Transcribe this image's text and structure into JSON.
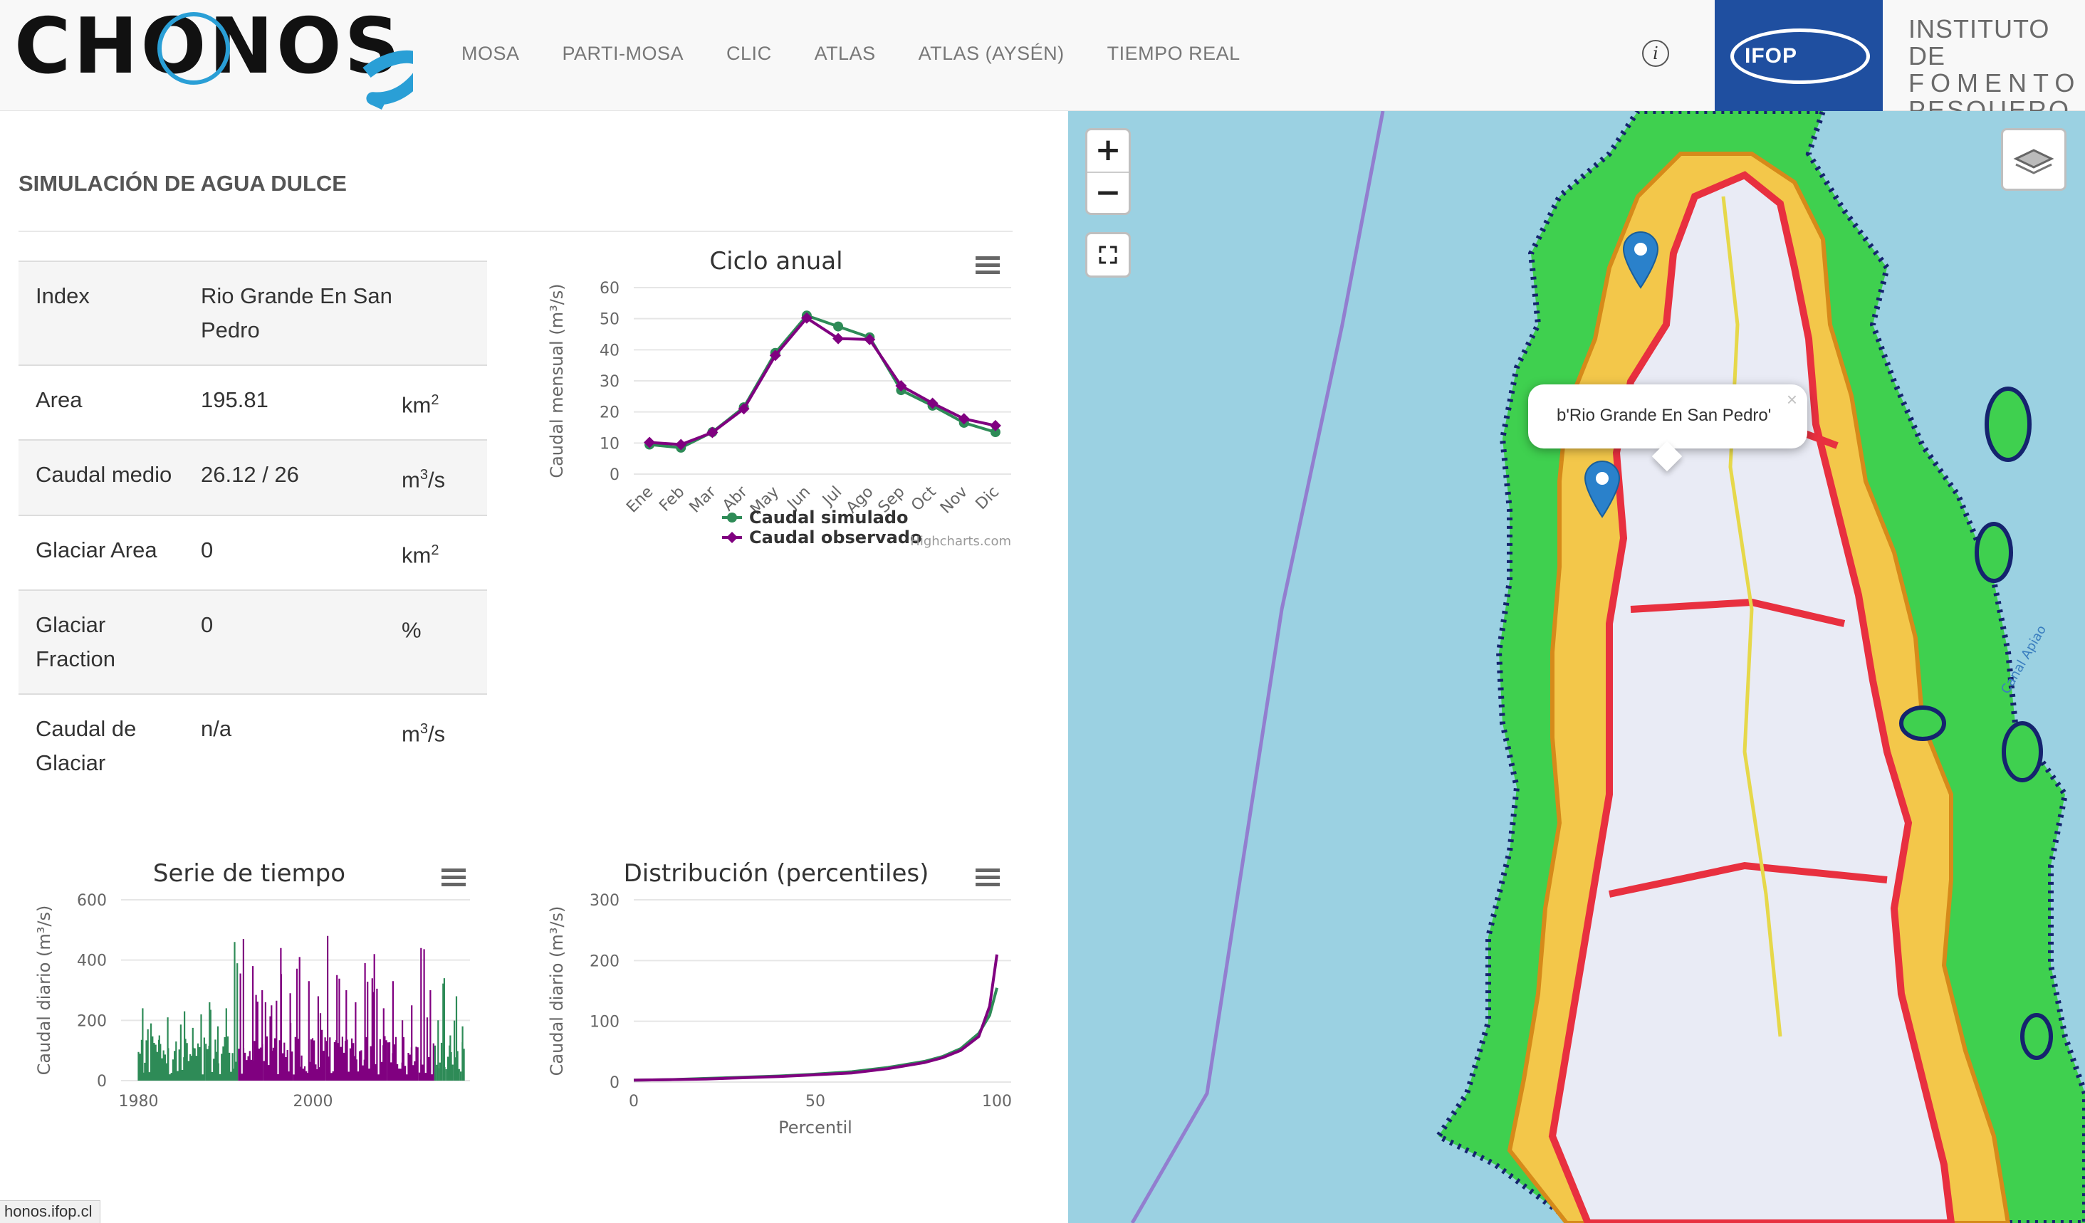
{
  "nav": {
    "brand": "CHONOS",
    "links": [
      "MOSA",
      "PARTI-MOSA",
      "CLIC",
      "ATLAS",
      "ATLAS (AYSÉN)",
      "TIEMPO REAL"
    ],
    "info_icon": "info-icon",
    "institution_logo": "IFOP",
    "institution_name_lines": [
      "INSTITUTO DE",
      "FOMENTO",
      "PESQUERO"
    ]
  },
  "page": {
    "title": "SIMULACIÓN DE AGUA DULCE"
  },
  "table": {
    "rows": [
      {
        "label": "Index",
        "value": "Rio Grande En San Pedro",
        "unit": "",
        "unit_sup": "",
        "unit_tail": ""
      },
      {
        "label": "Area",
        "value": "195.81",
        "unit": "km",
        "unit_sup": "2",
        "unit_tail": ""
      },
      {
        "label": "Caudal medio",
        "value": "26.12 / 26",
        "unit": "m",
        "unit_sup": "3",
        "unit_tail": "/s"
      },
      {
        "label": "Glaciar Area",
        "value": "0",
        "unit": "km",
        "unit_sup": "2",
        "unit_tail": ""
      },
      {
        "label": "Glaciar Fraction",
        "value": "0",
        "unit": "%",
        "unit_sup": "",
        "unit_tail": ""
      },
      {
        "label": "Caudal de Glaciar",
        "value": "n/a",
        "unit": "m",
        "unit_sup": "3",
        "unit_tail": "/s"
      }
    ]
  },
  "colors": {
    "simulated": "#2e8b57",
    "observed": "#800080",
    "basin_border": "#e8303f",
    "marker": "#2a81cb",
    "water": "#9bd1e2"
  },
  "chart_data": [
    {
      "type": "line",
      "title": "Ciclo anual",
      "ylabel": "Caudal mensual (m³/s)",
      "xlabel": "",
      "categories": [
        "Ene",
        "Feb",
        "Mar",
        "Abr",
        "May",
        "Jun",
        "Jul",
        "Ago",
        "Sep",
        "Oct",
        "Nov",
        "Dic"
      ],
      "yticks": [
        0,
        10,
        20,
        30,
        40,
        50,
        60
      ],
      "ylim": [
        0,
        60
      ],
      "series": [
        {
          "name": "Caudal simulado",
          "values": [
            9.5,
            8.5,
            13.5,
            21.5,
            39,
            51,
            47.5,
            44,
            27,
            22,
            16.5,
            13.5
          ]
        },
        {
          "name": "Caudal observado",
          "values": [
            10.2,
            9.5,
            13.4,
            21.0,
            38.2,
            50.2,
            43.6,
            43.3,
            28.4,
            22.8,
            17.8,
            15.6
          ]
        }
      ],
      "legend": "bottom",
      "credit": "Highcharts.com"
    },
    {
      "type": "bar",
      "title": "Serie de tiempo",
      "ylabel": "Caudal diario (m³/s)",
      "xticks": [
        "1980",
        "2000"
      ],
      "yticks": [
        0,
        200,
        400,
        600
      ],
      "ylim": [
        0,
        600
      ],
      "xlim": [
        1978,
        2018
      ],
      "series": [
        {
          "name": "Caudal simulado",
          "x_range": [
            1980,
            1991.5
          ],
          "peaks": [
            240,
            190,
            150,
            210,
            130,
            230,
            175,
            220,
            260,
            180,
            240,
            460
          ]
        },
        {
          "name": "Caudal observado",
          "x_range": [
            1991.5,
            2014
          ],
          "peaks": [
            470,
            380,
            300,
            250,
            440,
            290,
            410,
            330,
            280,
            480,
            350,
            300,
            260,
            390,
            420,
            240,
            330,
            200,
            250,
            440,
            300
          ]
        },
        {
          "name": "Caudal simulado",
          "x_range": [
            2014,
            2017.5
          ],
          "peaks": [
            200,
            340,
            150,
            280,
            180
          ]
        }
      ]
    },
    {
      "type": "line",
      "title": "Distribución (percentiles)",
      "ylabel": "Caudal diario (m³/s)",
      "xlabel": "Percentil",
      "xticks": [
        0,
        50,
        100
      ],
      "yticks": [
        0,
        100,
        200,
        300
      ],
      "xlim": [
        0,
        100
      ],
      "ylim": [
        0,
        300
      ],
      "series": [
        {
          "name": "Caudal simulado",
          "x": [
            0,
            10,
            20,
            30,
            40,
            50,
            60,
            70,
            80,
            85,
            90,
            95,
            98,
            100
          ],
          "values": [
            3,
            4,
            6,
            8,
            10,
            13,
            17,
            24,
            34,
            42,
            55,
            80,
            110,
            155
          ]
        },
        {
          "name": "Caudal observado",
          "x": [
            0,
            10,
            20,
            30,
            40,
            50,
            60,
            70,
            80,
            85,
            90,
            95,
            98,
            100
          ],
          "values": [
            3,
            4,
            5,
            7,
            9,
            12,
            15,
            22,
            32,
            40,
            52,
            75,
            125,
            210
          ]
        }
      ]
    }
  ],
  "map": {
    "zoom_in": "+",
    "zoom_out": "−",
    "fullscreen_icon": "fullscreen-icon",
    "layers_icon": "layers-icon",
    "popup_text": "b'Rio Grande En San Pedro'",
    "popup_close": "×",
    "labels": [
      "Canal Apiao"
    ]
  },
  "status_bar": {
    "url": "honos.ifop.cl"
  }
}
